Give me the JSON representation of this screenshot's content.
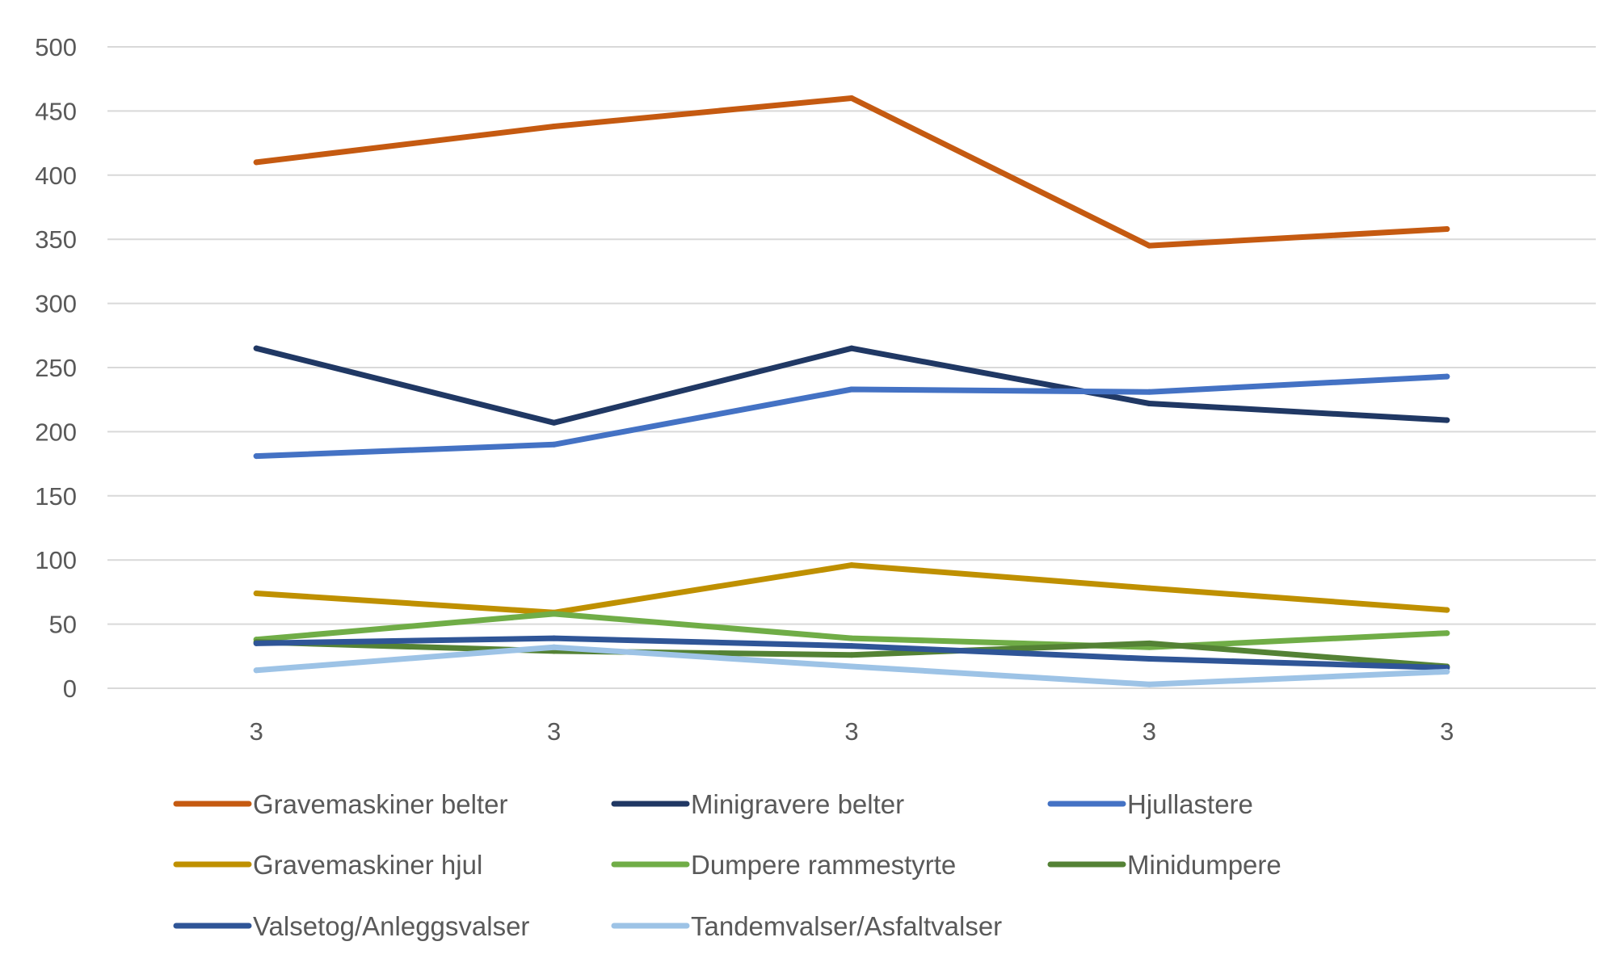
{
  "chart_data": {
    "type": "line",
    "title": "",
    "xlabel": "",
    "ylabel": "",
    "categories": [
      "3",
      "3",
      "3",
      "3",
      "3"
    ],
    "ylim": [
      0,
      500
    ],
    "yticks": [
      0,
      50,
      100,
      150,
      200,
      250,
      300,
      350,
      400,
      450,
      500
    ],
    "grid": true,
    "legend_position": "bottom",
    "series": [
      {
        "name": "Gravemaskiner belter",
        "color": "#c55a11",
        "values": [
          410,
          438,
          460,
          345,
          358
        ]
      },
      {
        "name": "Minigravere belter",
        "color": "#203864",
        "values": [
          265,
          207,
          265,
          222,
          209
        ]
      },
      {
        "name": "Hjullastere",
        "color": "#4472c4",
        "values": [
          181,
          190,
          233,
          231,
          243
        ]
      },
      {
        "name": "Gravemaskiner hjul",
        "color": "#bf9000",
        "values": [
          74,
          59,
          96,
          78,
          61
        ]
      },
      {
        "name": "Dumpere rammestyrte",
        "color": "#70ad47",
        "values": [
          38,
          58,
          39,
          32,
          43
        ]
      },
      {
        "name": "Minidumpere",
        "color": "#548235",
        "values": [
          36,
          29,
          26,
          35,
          17
        ]
      },
      {
        "name": "Valsetog/Anleggsvalser",
        "color": "#2f5597",
        "values": [
          35,
          39,
          33,
          23,
          16
        ]
      },
      {
        "name": "Tandemvalser/Asfaltvalser",
        "color": "#9dc3e6",
        "values": [
          14,
          32,
          17,
          3,
          13
        ]
      }
    ]
  }
}
